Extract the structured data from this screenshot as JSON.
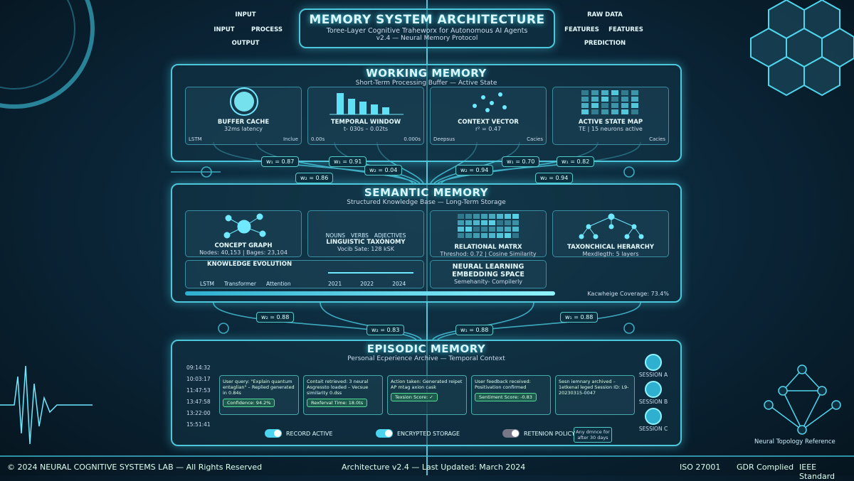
{
  "header": {
    "title": "MEMORY SYSTEM ARCHITECTURE",
    "subtitle": "Toree-Layer Cognitive Traheworx for Autonomous AI Agents",
    "version": "v2.4 — Neural Memory Protocol"
  },
  "left_legend": {
    "top": "INPUT",
    "left": "INPUT",
    "right": "PROCESS",
    "bottom": "OUTPUT"
  },
  "right_legend": {
    "top": "RAW DATA",
    "left": "FEATURES",
    "right": "FEATURES",
    "bottom": "PREDICTION"
  },
  "working_memory": {
    "title": "WORKING MEMORY",
    "subtitle": "Short-Term Processing Buffer — Active State",
    "panels": [
      {
        "title": "BUFFER CACHE",
        "detail": "32ms latency",
        "left": "LSTM",
        "right": "Inclue"
      },
      {
        "title": "TEMPORAL WINDOW",
        "detail": "t- 030s – 0.02ts",
        "left": "0.00s",
        "right": "0.000s"
      },
      {
        "title": "CONTEXT VECTOR",
        "detail": "r² = 0.47",
        "left": "Deepsus",
        "right": "Cacies"
      },
      {
        "title": "ACTIVE STATE MAP",
        "detail": "TE | 15 neurons active",
        "left": "",
        "right": "Cacies"
      }
    ]
  },
  "upper_weights": [
    "w₁ = 0.87",
    "w₂ = 0.86",
    "w₁ = 0.91",
    "w₂ = 0.04",
    "w₂ = 0.94",
    "w₁ = 0.70",
    "w₂ = 0.94",
    "w₁ = 0.82"
  ],
  "semantic_memory": {
    "title": "SEMANTIC MEMORY",
    "subtitle": "Structured Knowledge Base — Long-Term Storage",
    "concept_graph": {
      "title": "CONCEPT GRAPH",
      "detail": "Nodes: 40,153 | Bages: 23,104"
    },
    "linguistic": {
      "words": [
        "NOUNS",
        "VERBS",
        "ADJECTIVES"
      ],
      "title": "LINGUISTIC TAXONOMY",
      "detail": "Vocib Sate: 128 kSK"
    },
    "relational": {
      "title": "RELATIONAL MATRX",
      "detail": "Threshod: 0.72 | Cosine Similarity"
    },
    "taxonomy": {
      "title": "TAXONCHICAL HERARCHY",
      "detail": "Mexdlegth: 5 layers"
    },
    "evolution": {
      "title": "KNOWLEDGE EVOLUTION",
      "models": [
        "LSTM",
        "Transformer",
        "Attention"
      ],
      "years": [
        "2021",
        "2022",
        "2024"
      ]
    },
    "embedding": {
      "title": "NEURAL LEARNING EMBEDDING SPACE",
      "detail": "Semehanity- Compilerly"
    },
    "coverage": "Kacwheige Coverage: 73.4%"
  },
  "lower_weights": [
    "w₂ = 0.88",
    "w₂ = 0.83",
    "w₁ = 0.88",
    "w₁ = 0.88"
  ],
  "episodic_memory": {
    "title": "EPISODIC MEMORY",
    "subtitle": "Personal Ecperience Archive — Temporal Context",
    "times": [
      "09:14:32",
      "10:03:17",
      "11:47:53",
      "13:47:58",
      "13:22:00",
      "15:51:41"
    ],
    "events": [
      {
        "text": "User query: \"Explain quantum entaglian\" – Replied generated in 0.84s",
        "badge": "Confidence: 94.2%"
      },
      {
        "text": "Contait retrieved: 3 neural Asgressto loaded – Vecsue similarity 0.dss",
        "badge": "Rexferval Time: 18.0ts"
      },
      {
        "text": "Action taken: Generated reipet AP mtag axion cask",
        "badge": "Texsion Score: ✓"
      },
      {
        "text": "User feedback received: Positivation confirmed",
        "badge": "Sentiment Score: -0.83"
      },
      {
        "text": "Sesn iemnary archived – 1etkenal leged Session ID: L9-20230315-0047",
        "badge": ""
      }
    ],
    "sessions": [
      "SESSION A",
      "SESSION B",
      "SESSION C"
    ],
    "toggles": [
      "RECORD ACTIVE",
      "ENCRYPTED STORAGE",
      "RETENION POLICY"
    ],
    "retention_note": "Any dmnce for after 30 days"
  },
  "topology_label": "Neural Topology Reference",
  "footer": {
    "copyright": "© 2024 NEURAL COGNITIVE SYSTEMS LAB — All Rights Reserved",
    "version": "Architecture v2.4 — Last Updated: March 2024",
    "badges": [
      "ISO 27001",
      "GDR Complied",
      "IEEE Standard"
    ]
  }
}
